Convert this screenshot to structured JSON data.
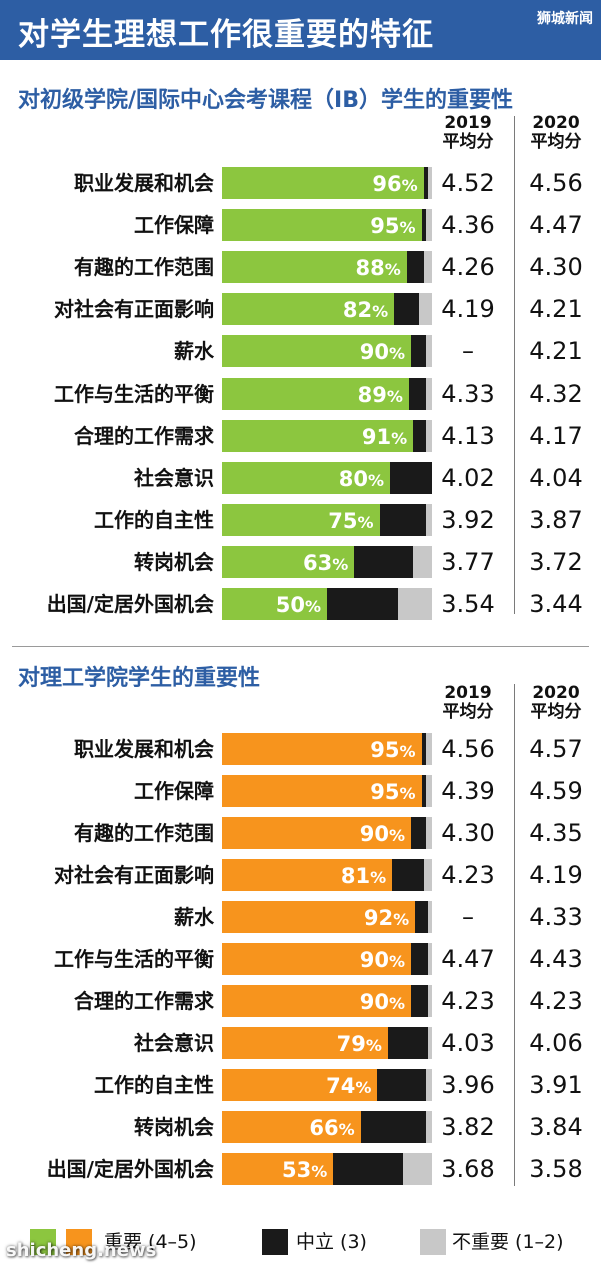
{
  "banner": {
    "title": "对学生理想工作很重要的特征",
    "logo": "狮城新闻"
  },
  "colors": {
    "important_jc": "#8cc63f",
    "important_poly": "#f7941d",
    "neutral": "#1a1a1a",
    "not_important": "#c8c8c8",
    "title_blue": "#2d5ea4"
  },
  "chart_data": [
    {
      "type": "bar",
      "stacked": true,
      "orientation": "horizontal",
      "title": "对初级学院/国际中心会考课程（IB）学生的重要性",
      "column_headers": [
        {
          "year": "2019",
          "label": "平均分"
        },
        {
          "year": "2020",
          "label": "平均分"
        }
      ],
      "categories": [
        "职业发展和机会",
        "工作保障",
        "有趣的工作范围",
        "对社会有正面影响",
        "薪水",
        "工作与生活的平衡",
        "合理的工作需求",
        "社会意识",
        "工作的自主性",
        "转岗机会",
        "出国/定居外国机会"
      ],
      "series": [
        {
          "name": "重要 (4–5)",
          "values": [
            96,
            95,
            88,
            82,
            90,
            89,
            91,
            80,
            75,
            63,
            50
          ]
        },
        {
          "name": "中立 (3)",
          "values": [
            2,
            2,
            8,
            12,
            7,
            8,
            6,
            20,
            22,
            28,
            34
          ]
        },
        {
          "name": "不重要 (1–2)",
          "values": [
            2,
            3,
            4,
            6,
            3,
            3,
            3,
            0,
            3,
            9,
            16
          ]
        }
      ],
      "pct_labels": [
        "96",
        "95",
        "88",
        "82",
        "90",
        "89",
        "91",
        "80",
        "75",
        "63",
        "50"
      ],
      "scores_2019": [
        "4.52",
        "4.36",
        "4.26",
        "4.19",
        "–",
        "4.33",
        "4.13",
        "4.02",
        "3.92",
        "3.77",
        "3.54"
      ],
      "scores_2020": [
        "4.56",
        "4.47",
        "4.30",
        "4.21",
        "4.21",
        "4.32",
        "4.17",
        "4.04",
        "3.87",
        "3.72",
        "3.44"
      ],
      "xlim": [
        0,
        100
      ]
    },
    {
      "type": "bar",
      "stacked": true,
      "orientation": "horizontal",
      "title": "对理工学院学生的重要性",
      "column_headers": [
        {
          "year": "2019",
          "label": "平均分"
        },
        {
          "year": "2020",
          "label": "平均分"
        }
      ],
      "categories": [
        "职业发展和机会",
        "工作保障",
        "有趣的工作范围",
        "对社会有正面影响",
        "薪水",
        "工作与生活的平衡",
        "合理的工作需求",
        "社会意识",
        "工作的自主性",
        "转岗机会",
        "出国/定居外国机会"
      ],
      "series": [
        {
          "name": "重要 (4–5)",
          "values": [
            95,
            95,
            90,
            81,
            92,
            90,
            90,
            79,
            74,
            66,
            53
          ]
        },
        {
          "name": "中立 (3)",
          "values": [
            2,
            2,
            7,
            15,
            6,
            8,
            8,
            19,
            23,
            31,
            33
          ]
        },
        {
          "name": "不重要 (1–2)",
          "values": [
            3,
            3,
            3,
            4,
            2,
            2,
            2,
            2,
            3,
            3,
            14
          ]
        }
      ],
      "pct_labels": [
        "95",
        "95",
        "90",
        "81",
        "92",
        "90",
        "90",
        "79",
        "74",
        "66",
        "53"
      ],
      "scores_2019": [
        "4.56",
        "4.39",
        "4.30",
        "4.23",
        "–",
        "4.47",
        "4.23",
        "4.03",
        "3.96",
        "3.82",
        "3.68"
      ],
      "scores_2020": [
        "4.57",
        "4.59",
        "4.35",
        "4.19",
        "4.33",
        "4.43",
        "4.23",
        "4.06",
        "3.91",
        "3.84",
        "3.58"
      ],
      "xlim": [
        0,
        100
      ]
    }
  ],
  "legend": {
    "important": "重要 (4–5)",
    "neutral": "中立 (3)",
    "not_important": "不重要 (1–2)"
  },
  "watermark": "shicheng.news"
}
